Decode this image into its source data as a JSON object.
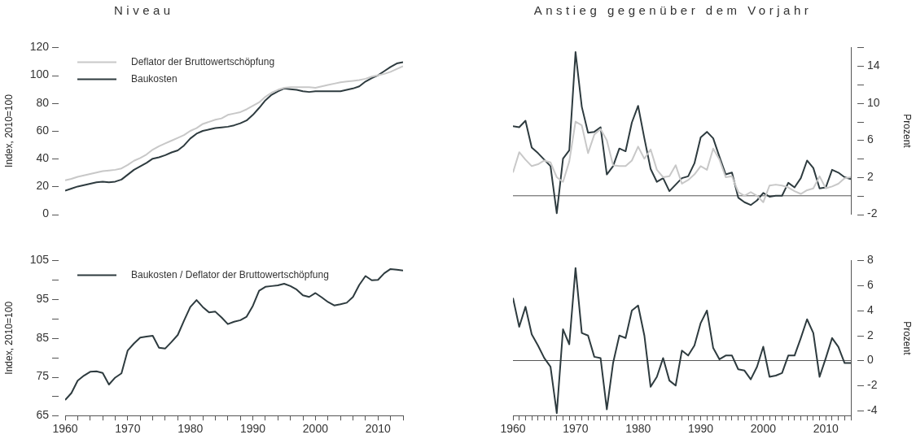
{
  "chart_data": [
    {
      "type": "line",
      "title": "Niveau",
      "ylabel": "Index, 2010=100",
      "x": [
        1960,
        1961,
        1962,
        1963,
        1964,
        1965,
        1966,
        1967,
        1968,
        1969,
        1970,
        1971,
        1972,
        1973,
        1974,
        1975,
        1976,
        1977,
        1978,
        1979,
        1980,
        1981,
        1982,
        1983,
        1984,
        1985,
        1986,
        1987,
        1988,
        1989,
        1990,
        1991,
        1992,
        1993,
        1994,
        1995,
        1996,
        1997,
        1998,
        1999,
        2000,
        2001,
        2002,
        2003,
        2004,
        2005,
        2006,
        2007,
        2008,
        2009,
        2010,
        2011,
        2012,
        2013,
        2014
      ],
      "ylim": [
        0,
        120
      ],
      "yticks": [
        0,
        20,
        40,
        60,
        80,
        100,
        120
      ],
      "tick_labels": "y",
      "legend": "top left",
      "series": [
        {
          "name": "Deflator der Bruttowertschöpfung",
          "color": "#c8c8c8",
          "values": [
            24.5,
            25.5,
            27,
            28,
            29,
            30,
            31,
            31.5,
            32,
            33,
            35.5,
            38.5,
            40.5,
            43,
            46.5,
            49,
            51,
            53,
            55,
            57,
            60,
            62,
            65,
            66.5,
            68,
            69,
            71.5,
            72.5,
            73.5,
            75.5,
            78,
            80.5,
            84.5,
            87.5,
            89.5,
            91,
            91.5,
            91.5,
            91.5,
            91.5,
            91,
            92,
            93,
            94,
            95,
            95.5,
            96,
            96.5,
            97.5,
            99,
            100,
            101,
            102.5,
            104.5,
            106.5
          ]
        },
        {
          "name": "Baukosten",
          "color": "#2e3b3f",
          "values": [
            17,
            18.5,
            20,
            21,
            22,
            23,
            23.5,
            23,
            23.5,
            25,
            28.5,
            32,
            34.5,
            37,
            40,
            41,
            42.5,
            44.5,
            46,
            49.5,
            54.5,
            58,
            60,
            61,
            62,
            62.5,
            63,
            64,
            65.5,
            67.5,
            71.5,
            76.5,
            82,
            86,
            88.5,
            90.5,
            90,
            89.5,
            88.5,
            88,
            88.5,
            88.5,
            88.5,
            88.5,
            88.5,
            89.5,
            90.5,
            92,
            95.5,
            98,
            100,
            103,
            106,
            108.5,
            109.5
          ]
        }
      ]
    },
    {
      "type": "line",
      "title": "Anstieg gegenüber dem Vorjahr",
      "ylabel": "Prozent",
      "x": [
        1960,
        1961,
        1962,
        1963,
        1964,
        1965,
        1966,
        1967,
        1968,
        1969,
        1970,
        1971,
        1972,
        1973,
        1974,
        1975,
        1976,
        1977,
        1978,
        1979,
        1980,
        1981,
        1982,
        1983,
        1984,
        1985,
        1986,
        1987,
        1988,
        1989,
        1990,
        1991,
        1992,
        1993,
        1994,
        1995,
        1996,
        1997,
        1998,
        1999,
        2000,
        2001,
        2002,
        2003,
        2004,
        2005,
        2006,
        2007,
        2008,
        2009,
        2010,
        2011,
        2012,
        2013,
        2014
      ],
      "ylim": [
        -2,
        16
      ],
      "yticks": [
        -2,
        {
          "value": 0,
          "label": null
        },
        2,
        {
          "value": 4,
          "label": null
        },
        6,
        {
          "value": 8,
          "label": null
        },
        10,
        {
          "value": 12,
          "label": null
        },
        14,
        {
          "value": 16,
          "label": null
        }
      ],
      "tick_labels": "y",
      "ref_lines": [
        {
          "axis": "y",
          "value": 0,
          "color": "#555555"
        }
      ],
      "series": [
        {
          "color": "#c8c8c8",
          "values": [
            2.5,
            4.7,
            3.9,
            3.2,
            3.4,
            3.8,
            3.6,
            2,
            1.5,
            3.7,
            8,
            7.6,
            4.6,
            6.6,
            7.2,
            6,
            3.3,
            3.2,
            3.2,
            3.8,
            5.3,
            4,
            5,
            2.8,
            2,
            2.1,
            3.3,
            1.3,
            1.7,
            2.3,
            3.2,
            2.8,
            5.1,
            3.9,
            2,
            2.1,
            0.4,
            0,
            0.4,
            0,
            -0.7,
            1.1,
            1.2,
            1.1,
            0.9,
            0.5,
            0.2,
            0.6,
            0.8,
            2.1,
            0.8,
            1,
            1.3,
            1.9,
            2
          ]
        },
        {
          "color": "#2e3b3f",
          "values": [
            7.5,
            7.4,
            8.1,
            5.2,
            4.6,
            3.9,
            3.2,
            -1.9,
            4,
            4.9,
            15.5,
            9.6,
            6.8,
            6.9,
            7.4,
            2.3,
            3.2,
            5.1,
            4.8,
            7.9,
            9.7,
            6.2,
            2.9,
            1.5,
            1.9,
            0.5,
            1.2,
            1.9,
            2.1,
            3.5,
            6.3,
            6.9,
            6.2,
            4.2,
            2.3,
            2.5,
            -0.2,
            -0.7,
            -1,
            -0.5,
            0.3,
            -0.1,
            0,
            0,
            1.4,
            0.9,
            1.9,
            3.8,
            3,
            0.8,
            0.9,
            2.8,
            2.5,
            2,
            1.8
          ]
        }
      ]
    },
    {
      "type": "line",
      "ylabel": "Index, 2010=100",
      "x": [
        1960,
        1961,
        1962,
        1963,
        1964,
        1965,
        1966,
        1967,
        1968,
        1969,
        1970,
        1971,
        1972,
        1973,
        1974,
        1975,
        1976,
        1977,
        1978,
        1979,
        1980,
        1981,
        1982,
        1983,
        1984,
        1985,
        1986,
        1987,
        1988,
        1989,
        1990,
        1991,
        1992,
        1993,
        1994,
        1995,
        1996,
        1997,
        1998,
        1999,
        2000,
        2001,
        2002,
        2003,
        2004,
        2005,
        2006,
        2007,
        2008,
        2009,
        2010,
        2011,
        2012,
        2013,
        2014
      ],
      "xlim": [
        1960,
        2014
      ],
      "xticks": [
        1960,
        {
          "value": 1962,
          "label": null
        },
        {
          "value": 1964,
          "label": null
        },
        {
          "value": 1966,
          "label": null
        },
        {
          "value": 1968,
          "label": null
        },
        1970,
        {
          "value": 1972,
          "label": null
        },
        {
          "value": 1974,
          "label": null
        },
        {
          "value": 1976,
          "label": null
        },
        {
          "value": 1978,
          "label": null
        },
        1980,
        {
          "value": 1982,
          "label": null
        },
        {
          "value": 1984,
          "label": null
        },
        {
          "value": 1986,
          "label": null
        },
        {
          "value": 1988,
          "label": null
        },
        1990,
        {
          "value": 1992,
          "label": null
        },
        {
          "value": 1994,
          "label": null
        },
        {
          "value": 1996,
          "label": null
        },
        {
          "value": 1998,
          "label": null
        },
        2000,
        {
          "value": 2002,
          "label": null
        },
        {
          "value": 2004,
          "label": null
        },
        {
          "value": 2006,
          "label": null
        },
        {
          "value": 2008,
          "label": null
        },
        2010,
        {
          "value": 2012,
          "label": null
        },
        {
          "value": 2014,
          "label": null
        }
      ],
      "ylim": [
        65,
        105
      ],
      "yticks": [
        65,
        {
          "value": 70,
          "label": null
        },
        75,
        {
          "value": 80,
          "label": null
        },
        85,
        {
          "value": 90,
          "label": null
        },
        95,
        {
          "value": 100,
          "label": null
        },
        105
      ],
      "legend": "top left",
      "series": [
        {
          "name": "Baukosten / Deflator der Bruttowertschöpfung",
          "color": "#2e3b3f",
          "values": [
            69,
            70.8,
            74,
            75.3,
            76.3,
            76.4,
            76,
            73,
            74.8,
            75.9,
            81.8,
            83.6,
            85.1,
            85.4,
            85.6,
            82.5,
            82.3,
            84,
            85.8,
            89.5,
            93,
            94.8,
            93,
            91.6,
            91.8,
            90.3,
            88.6,
            89.2,
            89.6,
            90.5,
            93.3,
            97.2,
            98.2,
            98.4,
            98.6,
            99,
            98.4,
            97.5,
            96,
            95.6,
            96.6,
            95.5,
            94.3,
            93.4,
            93.7,
            94.1,
            95.6,
            98.7,
            101,
            99.9,
            100,
            101.7,
            102.8,
            102.6,
            102.4
          ]
        }
      ]
    },
    {
      "type": "line",
      "ylabel": "Prozent",
      "x": [
        1960,
        1961,
        1962,
        1963,
        1964,
        1965,
        1966,
        1967,
        1968,
        1969,
        1970,
        1971,
        1972,
        1973,
        1974,
        1975,
        1976,
        1977,
        1978,
        1979,
        1980,
        1981,
        1982,
        1983,
        1984,
        1985,
        1986,
        1987,
        1988,
        1989,
        1990,
        1991,
        1992,
        1993,
        1994,
        1995,
        1996,
        1997,
        1998,
        1999,
        2000,
        2001,
        2002,
        2003,
        2004,
        2005,
        2006,
        2007,
        2008,
        2009,
        2010,
        2011,
        2012,
        2013,
        2014
      ],
      "xlim": [
        1960,
        2014
      ],
      "xticks": [
        1960,
        {
          "value": 1961,
          "label": null
        },
        {
          "value": 1962,
          "label": null
        },
        {
          "value": 1963,
          "label": null
        },
        {
          "value": 1964,
          "label": null
        },
        {
          "value": 1965,
          "label": null
        },
        {
          "value": 1966,
          "label": null
        },
        {
          "value": 1967,
          "label": null
        },
        {
          "value": 1968,
          "label": null
        },
        {
          "value": 1969,
          "label": null
        },
        1970,
        {
          "value": 1971,
          "label": null
        },
        {
          "value": 1972,
          "label": null
        },
        {
          "value": 1973,
          "label": null
        },
        {
          "value": 1974,
          "label": null
        },
        {
          "value": 1975,
          "label": null
        },
        {
          "value": 1976,
          "label": null
        },
        {
          "value": 1977,
          "label": null
        },
        {
          "value": 1978,
          "label": null
        },
        {
          "value": 1979,
          "label": null
        },
        1980,
        {
          "value": 1981,
          "label": null
        },
        {
          "value": 1982,
          "label": null
        },
        {
          "value": 1983,
          "label": null
        },
        {
          "value": 1984,
          "label": null
        },
        {
          "value": 1985,
          "label": null
        },
        {
          "value": 1986,
          "label": null
        },
        {
          "value": 1987,
          "label": null
        },
        {
          "value": 1988,
          "label": null
        },
        {
          "value": 1989,
          "label": null
        },
        1990,
        {
          "value": 1991,
          "label": null
        },
        {
          "value": 1992,
          "label": null
        },
        {
          "value": 1993,
          "label": null
        },
        {
          "value": 1994,
          "label": null
        },
        {
          "value": 1995,
          "label": null
        },
        {
          "value": 1996,
          "label": null
        },
        {
          "value": 1997,
          "label": null
        },
        {
          "value": 1998,
          "label": null
        },
        {
          "value": 1999,
          "label": null
        },
        2000,
        {
          "value": 2001,
          "label": null
        },
        {
          "value": 2002,
          "label": null
        },
        {
          "value": 2003,
          "label": null
        },
        {
          "value": 2004,
          "label": null
        },
        {
          "value": 2005,
          "label": null
        },
        {
          "value": 2006,
          "label": null
        },
        {
          "value": 2007,
          "label": null
        },
        {
          "value": 2008,
          "label": null
        },
        {
          "value": 2009,
          "label": null
        },
        2010,
        {
          "value": 2011,
          "label": null
        },
        {
          "value": 2012,
          "label": null
        },
        {
          "value": 2013,
          "label": null
        },
        {
          "value": 2014,
          "label": null
        }
      ],
      "ylim": [
        -4.4,
        8
      ],
      "yticks": [
        -4,
        -2,
        0,
        2,
        4,
        6,
        8
      ],
      "ref_lines": [
        {
          "axis": "y",
          "value": 0,
          "color": "#555555"
        }
      ],
      "series": [
        {
          "color": "#2e3b3f",
          "values": [
            5,
            2.7,
            4.3,
            2.1,
            1.2,
            0.2,
            -0.5,
            -4.2,
            2.5,
            1.3,
            7.4,
            2.2,
            2,
            0.3,
            0.2,
            -3.9,
            -0.2,
            2,
            1.8,
            4,
            4.4,
            2,
            -2.1,
            -1.3,
            0.2,
            -1.6,
            -2,
            0.8,
            0.4,
            1.2,
            3,
            4,
            1,
            0.1,
            0.4,
            0.4,
            -0.7,
            -0.8,
            -1.5,
            -0.5,
            1.1,
            -1.3,
            -1.2,
            -1,
            0.4,
            0.4,
            1.8,
            3.3,
            2.2,
            -1.3,
            0.2,
            1.8,
            1.1,
            -0.2,
            -0.2
          ]
        }
      ]
    }
  ]
}
